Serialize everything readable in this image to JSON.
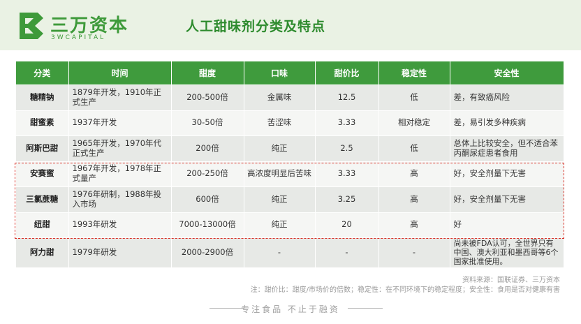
{
  "logo": {
    "cn": "三万资本",
    "en": "3WCAPITAL"
  },
  "title": "人工甜味剂分类及特点",
  "table": {
    "headers": [
      "分类",
      "时间",
      "甜度",
      "口味",
      "甜价比",
      "稳定性",
      "安全性"
    ],
    "rows": [
      [
        "糖精钠",
        "1879年开发，1910年正式生产",
        "200-500倍",
        "金属味",
        "12.5",
        "低",
        "差，有致癌风险"
      ],
      [
        "甜蜜素",
        "1937年开发",
        "30-50倍",
        "苦涩味",
        "3.33",
        "相对稳定",
        "差，易引发多种疾病"
      ],
      [
        "阿斯巴甜",
        "1965年开发，1970年代正式生产",
        "200倍",
        "纯正",
        "2.5",
        "低",
        "总体上比较安全，但不适合苯丙酮尿症患者食用"
      ],
      [
        "安赛蜜",
        "1967年开发，1978年正式量产",
        "200-250倍",
        "高浓度明显后苦味",
        "3.33",
        "高",
        "好，安全剂量下无害"
      ],
      [
        "三氯蔗糖",
        "1976年研制，1988年投入市场",
        "600倍",
        "纯正",
        "3.25",
        "高",
        "好，安全剂量下无害"
      ],
      [
        "纽甜",
        "1993年研发",
        "7000-13000倍",
        "纯正",
        "20",
        "高",
        "好"
      ],
      [
        "阿力甜",
        "1979年研发",
        "2000-2900倍",
        "-",
        "-",
        "-",
        "尚未被FDA认可，全世界只有中国、澳大利亚和墨西哥等6个国家批准使用。"
      ]
    ]
  },
  "source": "资料来源：国联证券、三万资本",
  "note": "注：甜价比：甜度/市场价的倍数；稳定性：在不同环境下的稳定程度；安全性：食用是否对健康有害",
  "footer": "专注食品  不止于融资",
  "colors": {
    "brand_green": "#3e9a3a",
    "header_bg": "#eaf2e4",
    "highlight_dash": "#d9342b"
  }
}
